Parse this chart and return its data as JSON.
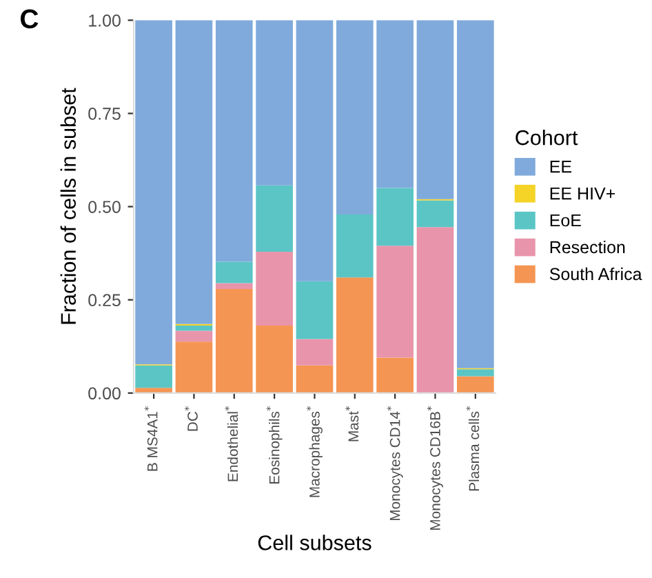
{
  "chart_data": {
    "type": "bar",
    "stacked": true,
    "xlabel": "Cell subsets",
    "ylabel": "Fraction of cells in subset",
    "legend_title": "Cohort",
    "legend": "right",
    "grid": false,
    "annotations": [
      "C"
    ],
    "categories": [
      "B MS4A1$^{*}$",
      "DC$^{*}$",
      "Endothelial$^{*}$",
      "Eosinophils$^{*}$",
      "Macrophages$^{*}$",
      "Mast$^{*}$",
      "Monocytes CD14$^{*}$",
      "Monocytes CD16B$^{*}$",
      "Plasma cells$^{*}$"
    ],
    "ylim": [
      0,
      1
    ],
    "yticks": [
      {
        "value": 0,
        "label": "0.00"
      },
      {
        "value": 0.25,
        "label": "0.25"
      },
      {
        "value": 0.5,
        "label": "0.50"
      },
      {
        "value": 0.75,
        "label": "0.75"
      },
      {
        "value": 1,
        "label": "1.00"
      }
    ],
    "series": [
      {
        "name": "South Africa",
        "color": "#f59553",
        "values": [
          0.014,
          0.138,
          0.279,
          0.181,
          0.074,
          0.31,
          0.095,
          0,
          0.045
        ]
      },
      {
        "name": "Resection",
        "color": "#e895ab",
        "values": [
          0,
          0.029,
          0.016,
          0.198,
          0.071,
          0,
          0.3,
          0.445,
          0
        ]
      },
      {
        "name": "EoE",
        "color": "#5bc5c5",
        "values": [
          0.06,
          0.014,
          0.057,
          0.178,
          0.155,
          0.169,
          0.155,
          0.072,
          0.019
        ]
      },
      {
        "name": "EE HIV+",
        "color": "#f5d327",
        "values": [
          0.003,
          0.004,
          0,
          0,
          0,
          0,
          0,
          0.003,
          0.003
        ]
      },
      {
        "name": "EE",
        "color": "#7faadb",
        "values": [
          0.923,
          0.815,
          0.648,
          0.443,
          0.7,
          0.521,
          0.45,
          0.48,
          0.933
        ]
      }
    ]
  }
}
